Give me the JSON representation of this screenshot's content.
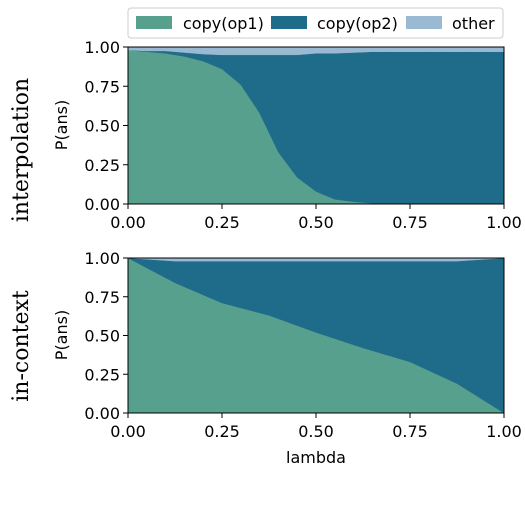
{
  "colors": {
    "copy_op1": "#56a08d",
    "copy_op2": "#1f6b8a",
    "other": "#9ab9d2",
    "axis": "#000000"
  },
  "legend": {
    "position": "top-center",
    "items": [
      {
        "label": "copy(op1)",
        "color_key": "copy_op1"
      },
      {
        "label": "copy(op2)",
        "color_key": "copy_op2"
      },
      {
        "label": "other",
        "color_key": "other"
      }
    ]
  },
  "chart_data": [
    {
      "type": "area",
      "row_label": "interpolation",
      "xlabel": "",
      "ylabel": "P(ans)",
      "xlim": [
        0,
        1
      ],
      "ylim": [
        0,
        1
      ],
      "x_ticks": [
        "0.00",
        "0.25",
        "0.50",
        "0.75",
        "1.00"
      ],
      "y_ticks": [
        "0.00",
        "0.25",
        "0.50",
        "0.75",
        "1.00"
      ],
      "stacked": true,
      "x": [
        0.0,
        0.05,
        0.1,
        0.15,
        0.2,
        0.25,
        0.3,
        0.35,
        0.4,
        0.45,
        0.5,
        0.55,
        0.6,
        0.65,
        0.7,
        0.75,
        0.8,
        0.85,
        0.9,
        0.95,
        1.0
      ],
      "series": [
        {
          "name": "copy(op1)",
          "color_key": "copy_op1",
          "values": [
            0.98,
            0.97,
            0.96,
            0.94,
            0.91,
            0.86,
            0.76,
            0.58,
            0.33,
            0.17,
            0.08,
            0.03,
            0.015,
            0.005,
            0.0,
            0.0,
            0.0,
            0.0,
            0.0,
            0.0,
            0.0
          ]
        },
        {
          "name": "copy(op2)",
          "color_key": "copy_op2",
          "values": [
            0.0,
            0.005,
            0.015,
            0.025,
            0.045,
            0.09,
            0.19,
            0.37,
            0.62,
            0.78,
            0.88,
            0.93,
            0.95,
            0.965,
            0.97,
            0.97,
            0.97,
            0.97,
            0.97,
            0.97,
            0.97
          ]
        },
        {
          "name": "other",
          "color_key": "other",
          "values": [
            0.02,
            0.025,
            0.025,
            0.035,
            0.045,
            0.05,
            0.05,
            0.05,
            0.05,
            0.05,
            0.04,
            0.04,
            0.035,
            0.03,
            0.03,
            0.03,
            0.03,
            0.03,
            0.03,
            0.03,
            0.03
          ]
        }
      ]
    },
    {
      "type": "area",
      "row_label": "in-context",
      "xlabel": "lambda",
      "ylabel": "P(ans)",
      "xlim": [
        0,
        1
      ],
      "ylim": [
        0,
        1
      ],
      "x_ticks": [
        "0.00",
        "0.25",
        "0.50",
        "0.75",
        "1.00"
      ],
      "y_ticks": [
        "0.00",
        "0.25",
        "0.50",
        "0.75",
        "1.00"
      ],
      "stacked": true,
      "x": [
        0.0,
        0.125,
        0.25,
        0.375,
        0.5,
        0.625,
        0.75,
        0.875,
        1.0
      ],
      "series": [
        {
          "name": "copy(op1)",
          "color_key": "copy_op1",
          "values": [
            1.0,
            0.84,
            0.71,
            0.63,
            0.52,
            0.42,
            0.33,
            0.19,
            0.0
          ]
        },
        {
          "name": "copy(op2)",
          "color_key": "copy_op2",
          "values": [
            0.0,
            0.14,
            0.27,
            0.35,
            0.46,
            0.56,
            0.65,
            0.79,
            1.0
          ]
        },
        {
          "name": "other",
          "color_key": "other",
          "values": [
            0.0,
            0.02,
            0.02,
            0.02,
            0.02,
            0.02,
            0.02,
            0.02,
            0.0
          ]
        }
      ]
    }
  ]
}
